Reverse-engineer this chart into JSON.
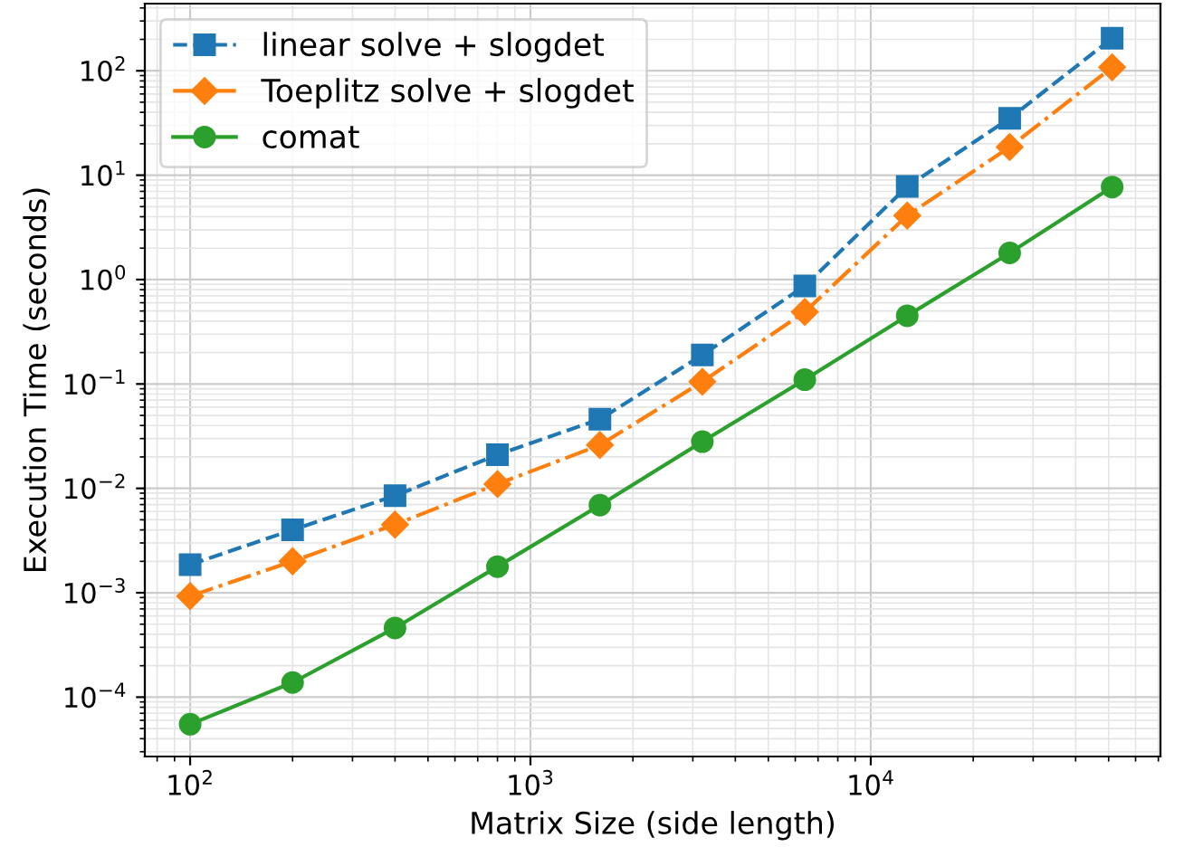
{
  "chart_data": {
    "type": "line",
    "xlabel": "Matrix Size (side length)",
    "ylabel": "Execution Time (seconds)",
    "x": [
      100,
      200,
      400,
      800,
      1600,
      3200,
      6400,
      12800,
      25600,
      51200
    ],
    "series": [
      {
        "name": "linear solve + slogdet",
        "color": "#1f77b4",
        "marker": "square",
        "line_style": "dashed",
        "values": [
          0.00186,
          0.004,
          0.0085,
          0.021,
          0.046,
          0.19,
          0.87,
          7.8,
          35,
          205
        ]
      },
      {
        "name": "Toeplitz solve + slogdet",
        "color": "#ff7f0e",
        "marker": "diamond",
        "line_style": "dashdot",
        "values": [
          0.00093,
          0.002,
          0.0045,
          0.011,
          0.026,
          0.105,
          0.49,
          4.1,
          18.6,
          108
        ]
      },
      {
        "name": "comat",
        "color": "#2ca02c",
        "marker": "circle",
        "line_style": "solid",
        "values": [
          5.5e-05,
          0.000138,
          0.00046,
          0.00178,
          0.0069,
          0.028,
          0.11,
          0.45,
          1.8,
          7.7
        ]
      }
    ],
    "log": "xy",
    "xlim": [
      73.6,
      71000
    ],
    "ylim": [
      2.7e-05,
      440
    ],
    "xticks": [
      {
        "value": 100,
        "label": "10$^{2}$"
      },
      {
        "value": 1000,
        "label": "10$^{3}$"
      },
      {
        "value": 10000,
        "label": "10$^{4}$"
      }
    ],
    "yticks": [
      {
        "value": 0.0001,
        "label": "10$^{−4}$"
      },
      {
        "value": 0.001,
        "label": "10$^{−3}$"
      },
      {
        "value": 0.01,
        "label": "10$^{−2}$"
      },
      {
        "value": 0.1,
        "label": "10$^{−1}$"
      },
      {
        "value": 1,
        "label": "10$^{0}$"
      },
      {
        "value": 10,
        "label": "10$^{1}$"
      },
      {
        "value": 100,
        "label": "10$^{2}$"
      }
    ],
    "grid": true,
    "legend": "top left"
  }
}
